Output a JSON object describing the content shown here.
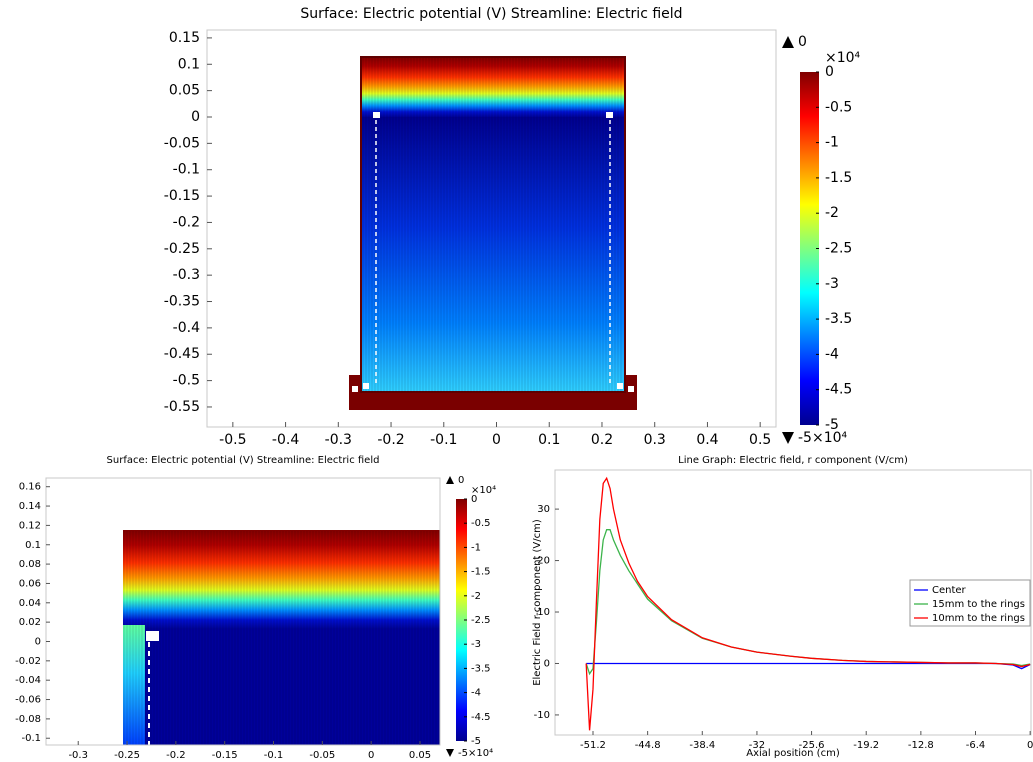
{
  "chart_data": [
    {
      "type": "surface",
      "title": "Surface: Electric potential (V)  Streamline: Electric field",
      "xlim": [
        -0.549,
        0.53
      ],
      "ylim": [
        -0.588,
        0.165
      ],
      "xticks": [
        -0.5,
        -0.4,
        -0.3,
        -0.2,
        -0.1,
        0,
        0.1,
        0.2,
        0.3,
        0.4,
        0.5
      ],
      "yticks": [
        0.15,
        0.1,
        0.05,
        0,
        -0.05,
        -0.1,
        -0.15,
        -0.2,
        -0.25,
        -0.3,
        -0.35,
        -0.4,
        -0.45,
        -0.5,
        -0.55
      ],
      "colorbar": {
        "clim": [
          -5,
          0
        ],
        "ticks": [
          0,
          -0.5,
          -1,
          -1.5,
          -2,
          -2.5,
          -3,
          -3.5,
          -4,
          -4.5,
          -5
        ],
        "multiplier": "×10⁴",
        "max_label": "0",
        "min_label": "-5×10⁴"
      }
    },
    {
      "type": "surface",
      "title": "Surface: Electric potential (V)  Streamline: Electric field",
      "xlim": [
        -0.333,
        0.0705
      ],
      "ylim": [
        -0.107,
        0.169
      ],
      "xticks": [
        -0.3,
        -0.25,
        -0.2,
        -0.15,
        -0.1,
        -0.05,
        0,
        0.05
      ],
      "yticks": [
        0.16,
        0.14,
        0.12,
        0.1,
        0.08,
        0.06,
        0.04,
        0.02,
        0,
        -0.02,
        -0.04,
        -0.06,
        -0.08,
        -0.1
      ],
      "colorbar": {
        "clim": [
          -5,
          0
        ],
        "ticks": [
          0,
          -0.5,
          -1,
          -1.5,
          -2,
          -2.5,
          -3,
          -3.5,
          -4,
          -4.5,
          -5
        ],
        "multiplier": "×10⁴",
        "max_label": "0",
        "min_label": "-5×10⁴"
      }
    },
    {
      "type": "line",
      "title": "Line Graph: Electric field, r component (V/cm)",
      "x_label": "Axial position (cm)",
      "y_label": "Electric Field r-component (V/cm)",
      "xlim": [
        -55.65,
        0.1
      ],
      "ylim": [
        -13.9,
        37.6
      ],
      "xticks": [
        -51.2,
        -44.8,
        -38.4,
        -32,
        -25.6,
        -19.2,
        -12.8,
        -6.4,
        0
      ],
      "yticks": [
        -10,
        0,
        10,
        20,
        30
      ],
      "x": [
        -52,
        -51.6,
        -51.2,
        -50.8,
        -50.4,
        -50,
        -49.6,
        -49.2,
        -48.8,
        -48,
        -47,
        -46,
        -44.8,
        -42,
        -38.4,
        -35,
        -32,
        -28,
        -25.6,
        -22,
        -19.2,
        -16,
        -12.8,
        -9.6,
        -6.4,
        -4,
        -2,
        -1,
        0
      ],
      "series": [
        {
          "name": "Center",
          "color": "#0000ff",
          "values": [
            0,
            0,
            0,
            0,
            0,
            0,
            0,
            0,
            0,
            0,
            0,
            0,
            0,
            0,
            0,
            0,
            0,
            0,
            0,
            0,
            0,
            0,
            0,
            0,
            0,
            0,
            -0.3,
            -1,
            -0.2
          ]
        },
        {
          "name": "15mm to the rings",
          "color": "#3cb44b",
          "values": [
            0,
            -2,
            -1,
            8,
            18,
            24,
            26,
            26,
            24,
            21,
            18,
            15.5,
            12.5,
            8.3,
            4.9,
            3.2,
            2.2,
            1.4,
            1,
            0.6,
            0.4,
            0.3,
            0.2,
            0.1,
            0.1,
            0,
            -0.1,
            -0.4,
            -0.1
          ]
        },
        {
          "name": "10mm to the rings",
          "color": "#ff0000",
          "values": [
            0,
            -13,
            -5,
            12,
            28,
            35,
            36,
            34,
            30,
            24,
            19.5,
            16,
            13,
            8.5,
            5,
            3.2,
            2.2,
            1.4,
            1,
            0.6,
            0.4,
            0.3,
            0.2,
            0.1,
            0.1,
            0,
            -0.2,
            -0.6,
            -0.2
          ]
        }
      ]
    }
  ]
}
